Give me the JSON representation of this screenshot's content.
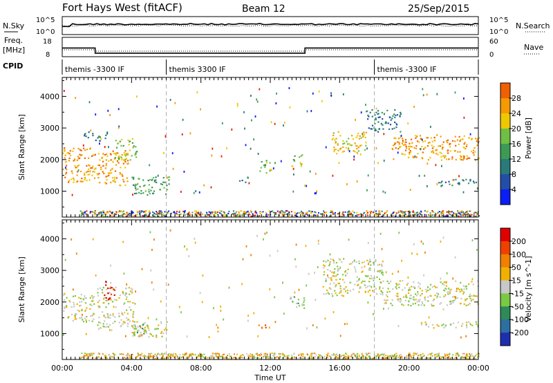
{
  "header": {
    "title": "Fort Hays West (fitACF)",
    "beam": "Beam 12",
    "date": "25/Sep/2015"
  },
  "strip": {
    "nsky_label": "N.Sky",
    "nsearch_label": "N.Search",
    "freq_label_line1": "Freq.",
    "freq_label_line2": "[MHz]",
    "nave_label": "Nave",
    "cpid_label": "CPID",
    "nsky_ticks": [
      "10^5",
      "10^0"
    ],
    "nsearch_ticks": [
      "10^5",
      "10^0"
    ],
    "freq_ticks": [
      "18",
      "8"
    ],
    "nave_ticks": [
      "60",
      "0"
    ],
    "freq_steps": [
      {
        "t0": 0.0,
        "t1": 1.9,
        "freq": 12.5
      },
      {
        "t0": 1.9,
        "t1": 14.0,
        "freq": 9.8
      },
      {
        "t0": 14.0,
        "t1": 24.0,
        "freq": 12.5
      }
    ],
    "cpid_segments": [
      {
        "start_hour": 0,
        "label": "themis -3300 IF"
      },
      {
        "start_hour": 6,
        "label": "themis 3300 IF"
      },
      {
        "start_hour": 18,
        "label": "themis -3300 IF"
      }
    ]
  },
  "xaxis": {
    "label": "Time UT",
    "ticks": [
      "00:00",
      "04:00",
      "08:00",
      "12:00",
      "16:00",
      "20:00",
      "00:00"
    ]
  },
  "power_panel": {
    "ylabel": "Slant Range [km]",
    "yticks": [
      "4000",
      "3000",
      "2000",
      "1000"
    ],
    "colorbar_label": "Power [dB]",
    "colorbar_ticks": [
      "28",
      "24",
      "20",
      "16",
      "12",
      "8",
      "4"
    ],
    "colors": [
      "#0b1ef5",
      "#224ea8",
      "#2a7a7a",
      "#3d9a55",
      "#6fbf44",
      "#f0c800",
      "#f59a00",
      "#f06000",
      "#e51a00"
    ]
  },
  "velocity_panel": {
    "ylabel": "Slant Range [km]",
    "yticks": [
      "4000",
      "3000",
      "2000",
      "1000"
    ],
    "colorbar_label": "Velocity [m s^-1]",
    "colorbar_ticks": [
      "200",
      "100",
      "50",
      "15",
      "-15",
      "-50",
      "-100",
      "-200"
    ],
    "colors": [
      "#1d2fb0",
      "#2d6fa0",
      "#2e8a5a",
      "#7ac943",
      "#c8c8c8",
      "#f0b000",
      "#f08000",
      "#f04000",
      "#e00000"
    ]
  },
  "chart_data": {
    "type": "heatmap",
    "title": "Fort Hays West (fitACF)",
    "x_range_hours": [
      0,
      24
    ],
    "y_range_km": [
      180,
      4600
    ],
    "dashed_lines_hours": [
      6,
      18
    ],
    "power_blobs": [
      {
        "t0": 0.0,
        "t1": 1.9,
        "r0": 1300,
        "r1": 2400,
        "level": 6
      },
      {
        "t0": 2.0,
        "t1": 3.8,
        "r0": 1200,
        "r1": 2300,
        "level": 6
      },
      {
        "t0": 3.0,
        "t1": 4.3,
        "r0": 2000,
        "r1": 2700,
        "level": 4
      },
      {
        "t0": 1.2,
        "t1": 2.6,
        "r0": 2600,
        "r1": 2900,
        "level": 2
      },
      {
        "t0": 4.0,
        "t1": 6.2,
        "r0": 900,
        "r1": 1500,
        "level": 3
      },
      {
        "t0": 10.2,
        "t1": 10.7,
        "r0": 1300,
        "r1": 1500,
        "level": 2
      },
      {
        "t0": 11.3,
        "t1": 12.0,
        "r0": 1600,
        "r1": 2000,
        "level": 4
      },
      {
        "t0": 13.2,
        "t1": 13.9,
        "r0": 1800,
        "r1": 2200,
        "level": 4
      },
      {
        "t0": 15.5,
        "t1": 17.5,
        "r0": 2200,
        "r1": 2900,
        "level": 5
      },
      {
        "t0": 17.5,
        "t1": 19.5,
        "r0": 2900,
        "r1": 3600,
        "level": 2
      },
      {
        "t0": 19.0,
        "t1": 24.0,
        "r0": 2000,
        "r1": 2800,
        "level": 6
      },
      {
        "t0": 21.5,
        "t1": 24.0,
        "r0": 1200,
        "r1": 1400,
        "level": 2
      }
    ],
    "velocity_blobs": [
      {
        "t0": 0.0,
        "t1": 1.8,
        "r0": 1400,
        "r1": 2300,
        "level": 4
      },
      {
        "t0": 2.0,
        "t1": 4.2,
        "r0": 1200,
        "r1": 2500,
        "level": 4
      },
      {
        "t0": 2.4,
        "t1": 3.0,
        "r0": 2100,
        "r1": 2700,
        "level": 8
      },
      {
        "t0": 4.0,
        "t1": 6.0,
        "r0": 900,
        "r1": 1400,
        "level": 4
      },
      {
        "t0": 4.1,
        "t1": 5.0,
        "r0": 900,
        "r1": 1300,
        "level": 3
      },
      {
        "t0": 11.3,
        "t1": 11.8,
        "r0": 1200,
        "r1": 1400,
        "level": 7
      },
      {
        "t0": 13.0,
        "t1": 14.0,
        "r0": 1800,
        "r1": 2200,
        "level": 3
      },
      {
        "t0": 15.0,
        "t1": 18.5,
        "r0": 2200,
        "r1": 3400,
        "level": 4
      },
      {
        "t0": 18.5,
        "t1": 24.0,
        "r0": 1900,
        "r1": 2700,
        "level": 4
      },
      {
        "t0": 20.5,
        "t1": 24.0,
        "r0": 1200,
        "r1": 1400,
        "level": 4
      }
    ]
  }
}
